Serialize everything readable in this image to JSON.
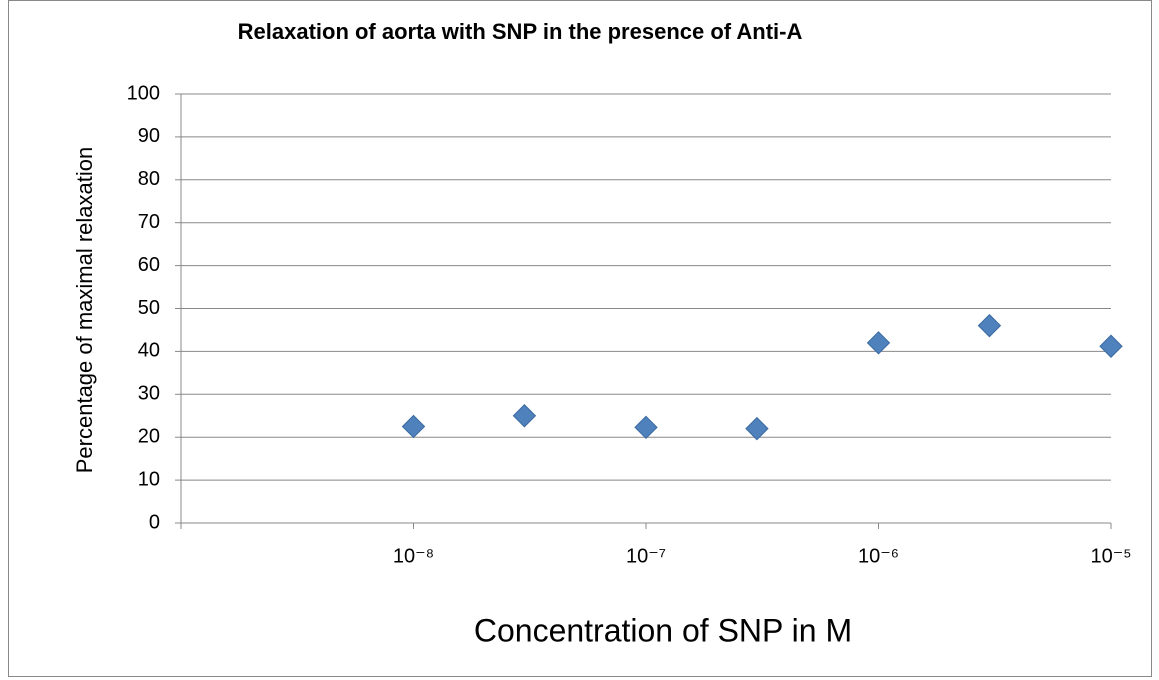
{
  "chart_data": {
    "type": "scatter",
    "title": "Relaxation of aorta with SNP in the presence of Anti-A",
    "x_label": "Concentration of SNP in M",
    "y_label": "Percentage of maximal relaxation",
    "x_scale": "log",
    "xlim": [
      1e-09,
      1e-05
    ],
    "xticks": [
      {
        "value": 1e-08,
        "label": "10⁻⁸"
      },
      {
        "value": 1e-07,
        "label": "10⁻⁷"
      },
      {
        "value": 1e-06,
        "label": "10⁻⁶"
      },
      {
        "value": 1e-05,
        "label": "10⁻⁵"
      }
    ],
    "ylim": [
      0,
      100
    ],
    "yticks": [
      0,
      10,
      20,
      30,
      40,
      50,
      60,
      70,
      80,
      90,
      100
    ],
    "grid": true,
    "color": "#4f81bd",
    "x": [
      1e-08,
      3e-08,
      1e-07,
      3e-07,
      1e-06,
      3e-06,
      1e-05
    ],
    "values": [
      22.5,
      25,
      22.3,
      22,
      42,
      46,
      41.2
    ]
  }
}
